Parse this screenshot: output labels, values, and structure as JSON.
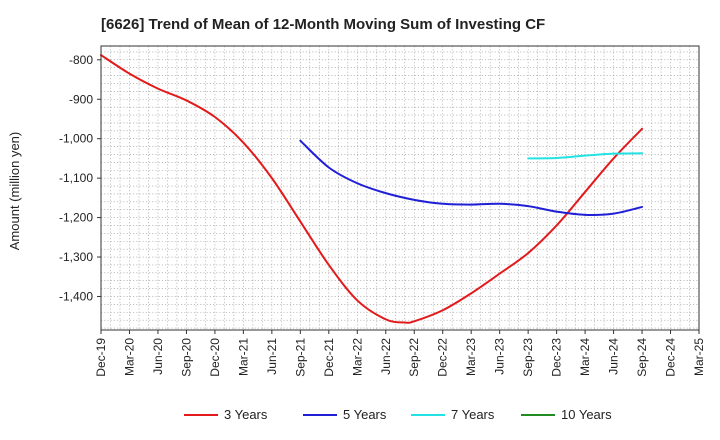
{
  "chart_data": {
    "type": "line",
    "title": "[6626]  Trend of Mean of 12-Month Moving Sum of Investing CF",
    "ylabel": "Amount (million yen)",
    "xlabel": "",
    "x_ticks": [
      "Dec-19",
      "Mar-20",
      "Jun-20",
      "Sep-20",
      "Dec-20",
      "Mar-21",
      "Jun-21",
      "Sep-21",
      "Dec-21",
      "Mar-22",
      "Jun-22",
      "Sep-22",
      "Dec-22",
      "Mar-23",
      "Jun-23",
      "Sep-23",
      "Dec-23",
      "Mar-24",
      "Jun-24",
      "Sep-24",
      "Dec-24",
      "Mar-25"
    ],
    "y_ticks": [
      "-800",
      "-900",
      "-1,000",
      "-1,100",
      "-1,200",
      "-1,300",
      "-1,400"
    ],
    "y_tick_values": [
      -800,
      -900,
      -1000,
      -1100,
      -1200,
      -1300,
      -1400
    ],
    "ylim": [
      -1485,
      -765
    ],
    "grid": true,
    "legend_position": "bottom",
    "series": [
      {
        "name": "3 Years",
        "color": "#e31a1c",
        "x": [
          "Dec-19",
          "Mar-20",
          "Jun-20",
          "Sep-20",
          "Dec-20",
          "Mar-21",
          "Jun-21",
          "Sep-21",
          "Dec-21",
          "Mar-22",
          "Jun-22",
          "Aug-22",
          "Sep-22",
          "Dec-22",
          "Mar-23",
          "Jun-23",
          "Sep-23",
          "Dec-23",
          "Mar-24",
          "Jun-24",
          "Sep-24"
        ],
        "values": [
          -788,
          -835,
          -873,
          -903,
          -945,
          -1010,
          -1100,
          -1210,
          -1320,
          -1410,
          -1458,
          -1466,
          -1463,
          -1435,
          -1392,
          -1342,
          -1290,
          -1220,
          -1135,
          -1050,
          -975
        ]
      },
      {
        "name": "5 Years",
        "color": "#1f1fd6",
        "x": [
          "Sep-21",
          "Dec-21",
          "Mar-22",
          "Jun-22",
          "Sep-22",
          "Dec-22",
          "Mar-23",
          "Jun-23",
          "Sep-23",
          "Dec-23",
          "Mar-24",
          "Jun-24",
          "Sep-24"
        ],
        "values": [
          -1005,
          -1073,
          -1113,
          -1138,
          -1155,
          -1165,
          -1167,
          -1165,
          -1171,
          -1185,
          -1193,
          -1190,
          -1173
        ]
      },
      {
        "name": "7 Years",
        "color": "#22e3e3",
        "x": [
          "Sep-23",
          "Dec-23",
          "Mar-24",
          "Jun-24",
          "Sep-24"
        ],
        "values": [
          -1050,
          -1049,
          -1043,
          -1038,
          -1037
        ]
      },
      {
        "name": "10 Years",
        "color": "#228b22",
        "x": [],
        "values": []
      }
    ]
  }
}
